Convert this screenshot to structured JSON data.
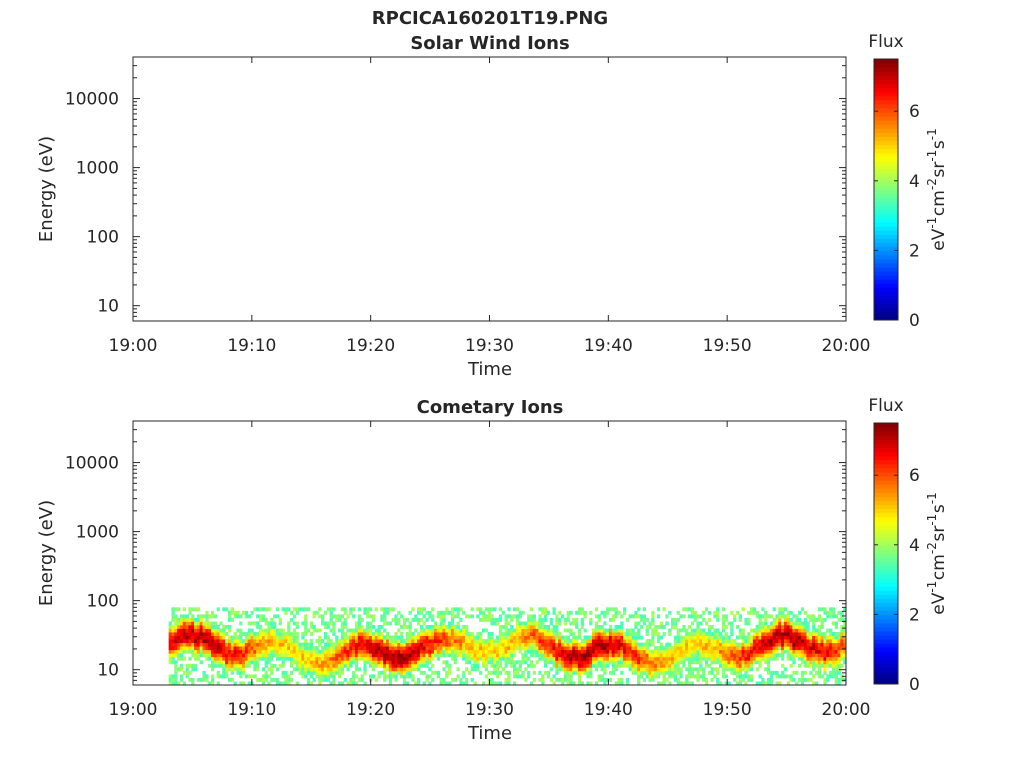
{
  "figure": {
    "main_title": "RPCICA160201T19.PNG"
  },
  "colorbar": {
    "label": "Flux",
    "unit_base": "eV",
    "unit_parts": [
      {
        "b": "eV",
        "e": "-1"
      },
      {
        "b": "cm",
        "e": "-2"
      },
      {
        "b": "sr",
        "e": "-1"
      },
      {
        "b": "s",
        "e": "-1"
      }
    ],
    "range": [
      0,
      7.5
    ],
    "ticks": [
      "0",
      "2",
      "4",
      "6"
    ],
    "colormap": "jet"
  },
  "chart_data": [
    {
      "type": "heatmap",
      "title": "Solar Wind Ions",
      "xlabel": "Time",
      "ylabel": "Energy (eV)",
      "y_scale": "log",
      "ylim": [
        6,
        40000
      ],
      "xlim": [
        "19:00",
        "20:00"
      ],
      "x_ticks": [
        "19:00",
        "19:10",
        "19:20",
        "19:30",
        "19:40",
        "19:50",
        "20:00"
      ],
      "y_ticks": [
        "10",
        "100",
        "1000",
        "10000"
      ],
      "data": "empty"
    },
    {
      "type": "heatmap",
      "title": "Cometary Ions",
      "xlabel": "Time",
      "ylabel": "Energy (eV)",
      "y_scale": "log",
      "ylim": [
        6,
        40000
      ],
      "xlim": [
        "19:00",
        "20:00"
      ],
      "x_ticks": [
        "19:00",
        "19:10",
        "19:20",
        "19:30",
        "19:40",
        "19:50",
        "20:00"
      ],
      "y_ticks": [
        "10",
        "100",
        "1000",
        "10000"
      ],
      "data_start": "19:03",
      "data_end": "20:00",
      "energy_min": 6,
      "energy_max": 80,
      "peak_energy": 20,
      "peak_flux": 7.2
    }
  ]
}
